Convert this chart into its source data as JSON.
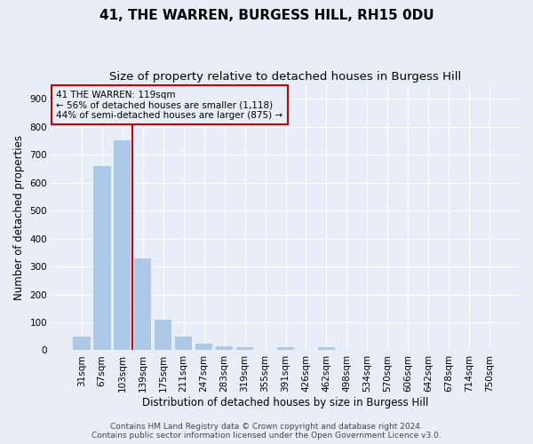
{
  "title": "41, THE WARREN, BURGESS HILL, RH15 0DU",
  "subtitle": "Size of property relative to detached houses in Burgess Hill",
  "xlabel": "Distribution of detached houses by size in Burgess Hill",
  "ylabel": "Number of detached properties",
  "footer_line1": "Contains HM Land Registry data © Crown copyright and database right 2024.",
  "footer_line2": "Contains public sector information licensed under the Open Government Licence v3.0.",
  "bar_labels": [
    "31sqm",
    "67sqm",
    "103sqm",
    "139sqm",
    "175sqm",
    "211sqm",
    "247sqm",
    "283sqm",
    "319sqm",
    "355sqm",
    "391sqm",
    "426sqm",
    "462sqm",
    "498sqm",
    "534sqm",
    "570sqm",
    "606sqm",
    "642sqm",
    "678sqm",
    "714sqm",
    "750sqm"
  ],
  "bar_values": [
    50,
    660,
    750,
    330,
    108,
    50,
    25,
    15,
    10,
    0,
    10,
    0,
    10,
    0,
    0,
    0,
    0,
    0,
    0,
    0,
    0
  ],
  "bar_color": "#adc9e8",
  "annotation_line1": "41 THE WARREN: 119sqm",
  "annotation_line2": "← 56% of detached houses are smaller (1,118)",
  "annotation_line3": "44% of semi-detached houses are larger (875) →",
  "vertical_line_x": 2.47,
  "annotation_box_color": "#cc0000",
  "ylim": [
    0,
    950
  ],
  "yticks": [
    0,
    100,
    200,
    300,
    400,
    500,
    600,
    700,
    800,
    900
  ],
  "background_color": "#e8eef7",
  "grid_color": "#ffffff",
  "title_fontsize": 11,
  "subtitle_fontsize": 9.5,
  "axis_label_fontsize": 8.5,
  "tick_fontsize": 7.5,
  "annotation_fontsize": 7.5,
  "footer_fontsize": 6.5
}
